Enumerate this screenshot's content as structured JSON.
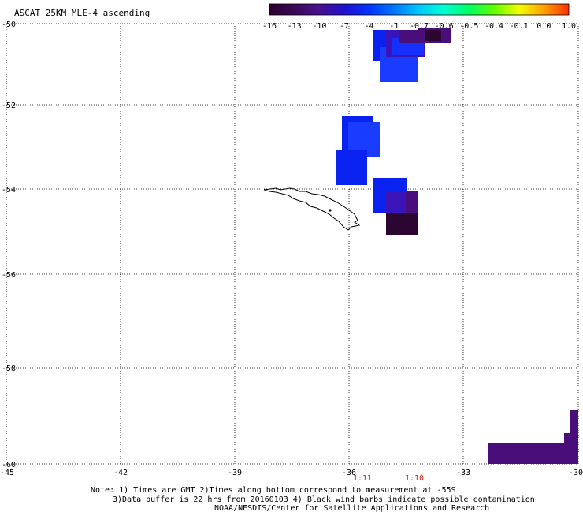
{
  "header": {
    "title": "ASCAT 25KM MLE-4 ascending"
  },
  "colorbar": {
    "ticks": [
      "-16",
      "-13",
      "-10",
      "-7",
      "-4",
      "-1",
      "-0.7",
      "-0.6",
      "-0.5",
      "-0.4",
      "-0.1",
      "0.0",
      "1.0"
    ],
    "colors": [
      "#2a002e",
      "#3c0858",
      "#4a1090",
      "#2010d0",
      "#0033ff",
      "#0077ff",
      "#00c8ff",
      "#00ffd0",
      "#00ff60",
      "#60ff00",
      "#f0ff00",
      "#ffa000",
      "#ff3000"
    ]
  },
  "axes": {
    "lat_labels": [
      "-50",
      "-52",
      "-54",
      "-56",
      "-58",
      "-60"
    ],
    "lon_labels": [
      "-45",
      "-42",
      "-39",
      "-36",
      "-33",
      "-30"
    ]
  },
  "times": [
    "1:11",
    "1:10"
  ],
  "notes": [
    "Note: 1) Times are GMT 2)Times along bottom correspond to measurement at -55S",
    "3)Data buffer is 22 hrs from 20160103 4) Black wind barbs indicate possible contamination",
    "NOAA/NESDIS/Center for Satellite Applications and Research"
  ],
  "swath_colors": {
    "dark": "#2a0630",
    "purple": "#4a0e7a",
    "violet": "#3a14b8",
    "blue": "#0a22f0",
    "blue_light": "#1a3cff",
    "blue_mid": "#1530ff"
  }
}
